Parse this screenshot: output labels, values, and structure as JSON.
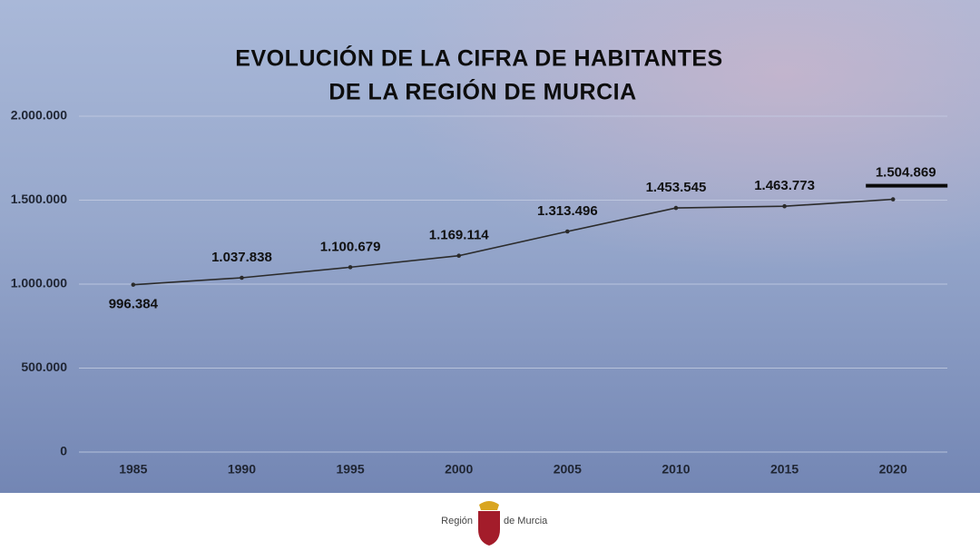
{
  "chart_data": {
    "type": "line",
    "title": [
      "EVOLUCIÓN DE LA CIFRA DE HABITANTES",
      "DE LA REGIÓN DE MURCIA"
    ],
    "categories": [
      "1985",
      "1990",
      "1995",
      "2000",
      "2005",
      "2010",
      "2015",
      "2020"
    ],
    "values": [
      996384,
      1037838,
      1100679,
      1169114,
      1313496,
      1453545,
      1463773,
      1504869
    ],
    "value_labels": [
      "996.384",
      "1.037.838",
      "1.100.679",
      "1.169.114",
      "1.313.496",
      "1.453.545",
      "1.463.773",
      "1.504.869"
    ],
    "color": "#2b2b2b",
    "ylim": [
      0,
      2000000
    ],
    "yticks": [
      0,
      {
        "value": 500000,
        "label": "500.000"
      },
      {
        "value": 1000000,
        "label": "1.000.000"
      },
      {
        "value": 1500000,
        "label": "1.500.000"
      },
      {
        "value": 2000000,
        "label": "2.000.000"
      }
    ],
    "grid": true
  },
  "footer": {
    "left": "Región",
    "right": "de Murcia"
  }
}
